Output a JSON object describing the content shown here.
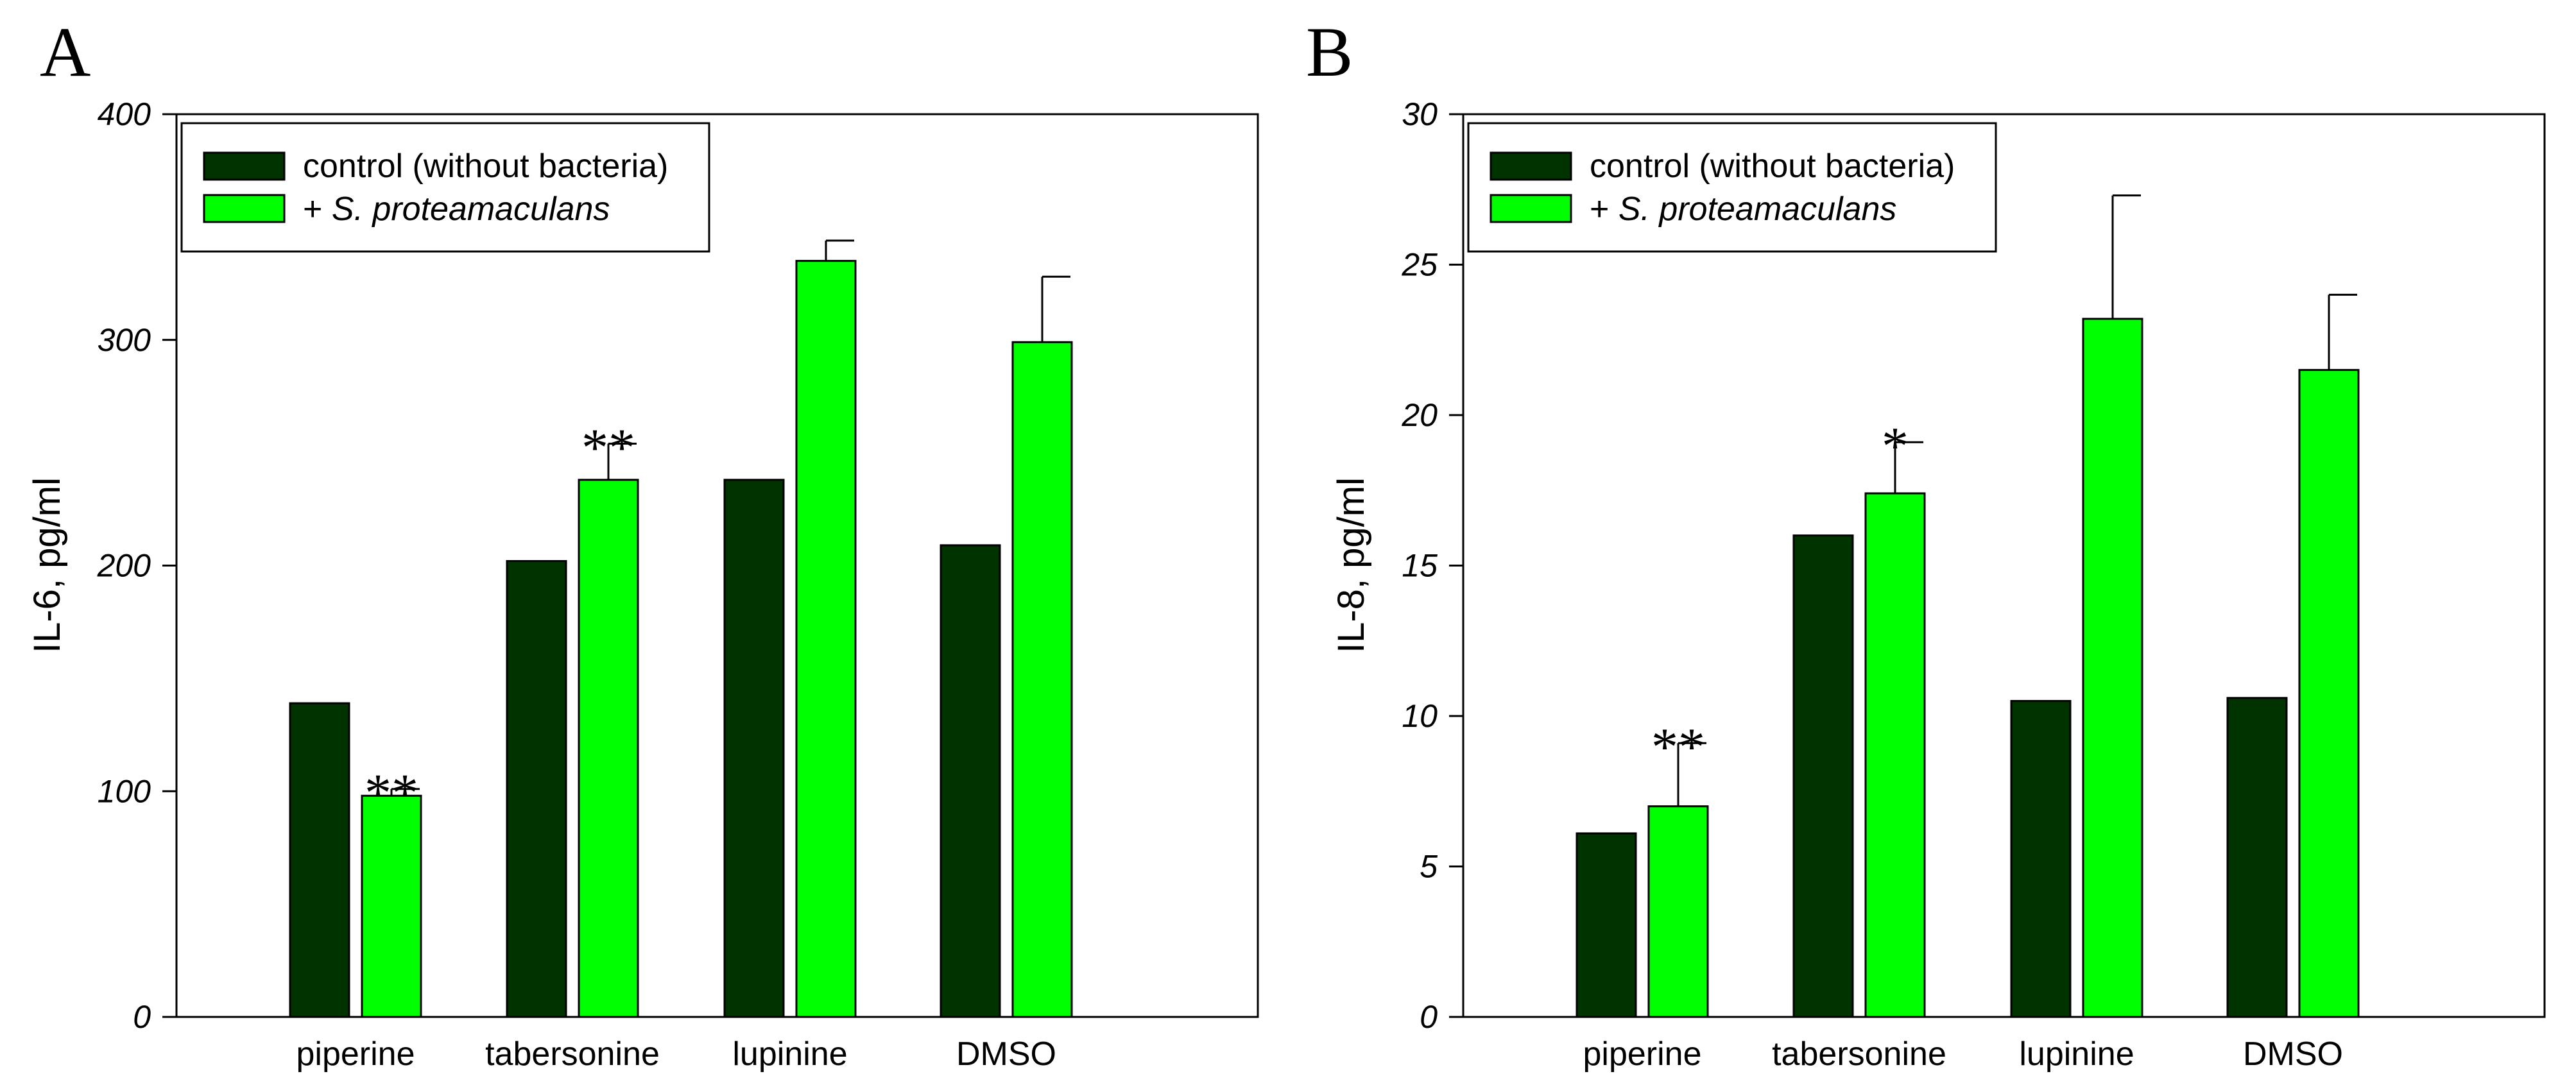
{
  "chart_data": [
    {
      "panel": "A",
      "type": "bar",
      "categories": [
        "piperine",
        "tabersonine",
        "lupinine",
        "DMSO"
      ],
      "series": [
        {
          "name": "control (without bacteria)",
          "values": [
            139,
            202,
            238,
            209
          ],
          "errors": [
            0,
            0,
            0,
            0
          ]
        },
        {
          "name": "+ S. proteamaculans",
          "values": [
            98,
            238,
            335,
            299
          ],
          "errors": [
            3,
            16,
            9,
            29
          ]
        }
      ],
      "significance": [
        "**",
        "**",
        "",
        ""
      ],
      "ylabel": "IL-6, pg/ml",
      "ylim": [
        0,
        400
      ],
      "yticks": [
        0,
        100,
        200,
        300,
        400
      ],
      "legend": "top-left"
    },
    {
      "panel": "B",
      "type": "bar",
      "categories": [
        "piperine",
        "tabersonine",
        "lupinine",
        "DMSO"
      ],
      "series": [
        {
          "name": "control (without bacteria)",
          "values": [
            6.1,
            16.0,
            10.5,
            10.6
          ],
          "errors": [
            0,
            0,
            0,
            0
          ]
        },
        {
          "name": "+ S. proteamaculans",
          "values": [
            7.0,
            17.4,
            23.2,
            21.5
          ],
          "errors": [
            2.1,
            1.7,
            4.1,
            2.5
          ]
        }
      ],
      "significance": [
        "**",
        "*",
        "",
        ""
      ],
      "ylabel": "IL-8, pg/ml",
      "ylim": [
        0,
        30
      ],
      "yticks": [
        0,
        5,
        10,
        15,
        20,
        25,
        30
      ],
      "legend": "top-left"
    }
  ],
  "legend": {
    "control_label": "control (without bacteria)",
    "treated_prefix": "+ ",
    "treated_species": "S. proteamaculans"
  },
  "colors": {
    "control": "#003300",
    "treated": "#00ff00",
    "axis": "#000000"
  }
}
